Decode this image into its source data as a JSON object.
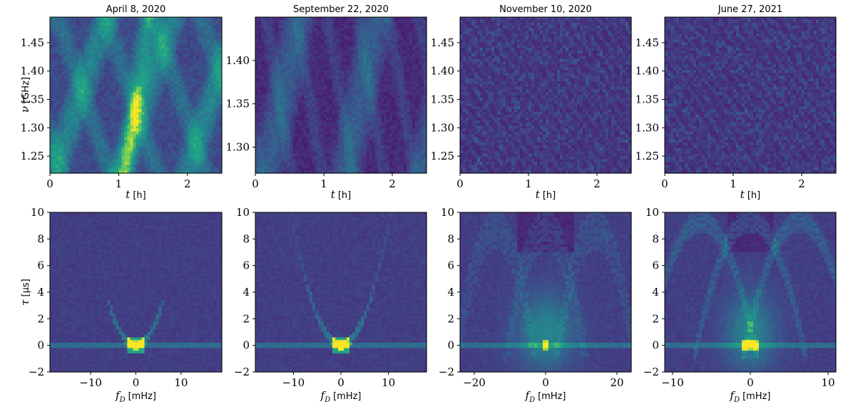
{
  "figure": {
    "top_row_xlabel": {
      "sym": "t",
      "unit": "[h]"
    },
    "top_row_ylabel": {
      "sym": "ν",
      "unit": "[GHz]"
    },
    "bottom_row_xlabel": {
      "sym": "f",
      "sub": "D",
      "unit": "[mHz]"
    },
    "bottom_row_ylabel": {
      "sym": "τ",
      "unit": "[μs]"
    }
  },
  "chart_data": [
    {
      "type": "heatmap",
      "kind": "dynamic-spectrum",
      "title": "April 8, 2020",
      "xlim": [
        0,
        2.5
      ],
      "ylim": [
        1.22,
        1.495
      ],
      "xticks": [
        0,
        1,
        2
      ],
      "xtick_labels": [
        "0",
        "1",
        "2"
      ],
      "yticks": [
        1.25,
        1.3,
        1.35,
        1.4,
        1.45
      ],
      "ytick_labels": [
        "1.25",
        "1.30",
        "1.35",
        "1.40",
        "1.45"
      ],
      "colormap": "viridis"
    },
    {
      "type": "heatmap",
      "kind": "dynamic-spectrum",
      "title": "September 22, 2020",
      "xlim": [
        0,
        2.5
      ],
      "ylim": [
        1.27,
        1.45
      ],
      "xticks": [
        0,
        1,
        2
      ],
      "xtick_labels": [
        "0",
        "1",
        "2"
      ],
      "yticks": [
        1.3,
        1.35,
        1.4
      ],
      "ytick_labels": [
        "1.30",
        "1.35",
        "1.40"
      ],
      "colormap": "viridis"
    },
    {
      "type": "heatmap",
      "kind": "dynamic-spectrum",
      "title": "November 10, 2020",
      "xlim": [
        0,
        2.5
      ],
      "ylim": [
        1.22,
        1.495
      ],
      "xticks": [
        0,
        1,
        2
      ],
      "xtick_labels": [
        "0",
        "1",
        "2"
      ],
      "yticks": [
        1.25,
        1.3,
        1.35,
        1.4,
        1.45
      ],
      "ytick_labels": [
        "1.25",
        "1.30",
        "1.35",
        "1.40",
        "1.45"
      ],
      "colormap": "viridis"
    },
    {
      "type": "heatmap",
      "kind": "dynamic-spectrum",
      "title": "June 27, 2021",
      "xlim": [
        0,
        2.5
      ],
      "ylim": [
        1.22,
        1.495
      ],
      "xticks": [
        0,
        1,
        2
      ],
      "xtick_labels": [
        "0",
        "1",
        "2"
      ],
      "yticks": [
        1.25,
        1.3,
        1.35,
        1.4,
        1.45
      ],
      "ytick_labels": [
        "1.25",
        "1.30",
        "1.35",
        "1.40",
        "1.45"
      ],
      "colormap": "viridis"
    },
    {
      "type": "heatmap",
      "kind": "secondary-spectrum",
      "xlim": [
        -19,
        19
      ],
      "ylim": [
        -2,
        10
      ],
      "xticks": [
        -10,
        0,
        10
      ],
      "xtick_labels": [
        "−10",
        "0",
        "10"
      ],
      "yticks": [
        -2,
        0,
        2,
        4,
        6,
        8,
        10
      ],
      "ytick_labels": [
        "−2",
        "0",
        "2",
        "4",
        "6",
        "8",
        "10"
      ],
      "arc_curvature": 0.09,
      "arc_extent_tau": 3.5,
      "colormap": "viridis"
    },
    {
      "type": "heatmap",
      "kind": "secondary-spectrum",
      "xlim": [
        -18,
        18
      ],
      "ylim": [
        -2,
        10
      ],
      "xticks": [
        -10,
        0,
        10
      ],
      "xtick_labels": [
        "−10",
        "0",
        "10"
      ],
      "yticks": [
        -2,
        0,
        2,
        4,
        6,
        8,
        10
      ],
      "ytick_labels": [
        "−2",
        "0",
        "2",
        "4",
        "6",
        "8",
        "10"
      ],
      "arc_curvature": 0.09,
      "arc_extent_tau": 10,
      "colormap": "viridis"
    },
    {
      "type": "heatmap",
      "kind": "secondary-spectrum",
      "xlim": [
        -24,
        24
      ],
      "ylim": [
        -2,
        10
      ],
      "xticks": [
        -20,
        0,
        20
      ],
      "xtick_labels": [
        "−20",
        "0",
        "20"
      ],
      "yticks": [
        -2,
        0,
        2,
        4,
        6,
        8,
        10
      ],
      "ytick_labels": [
        "−2",
        "0",
        "2",
        "4",
        "6",
        "8",
        "10"
      ],
      "arc_curvature": 0.05,
      "arc_extent_tau": 10,
      "arc_centers": [
        -14,
        14
      ],
      "colormap": "viridis"
    },
    {
      "type": "heatmap",
      "kind": "secondary-spectrum",
      "xlim": [
        -11,
        11
      ],
      "ylim": [
        -2,
        10
      ],
      "xticks": [
        -10,
        0,
        10
      ],
      "xtick_labels": [
        "−10",
        "0",
        "10"
      ],
      "yticks": [
        -2,
        0,
        2,
        4,
        6,
        8,
        10
      ],
      "ytick_labels": [
        "−2",
        "0",
        "2",
        "4",
        "6",
        "8",
        "10"
      ],
      "arc_curvature": 0.25,
      "arc_extent_tau": 10,
      "arc_centers": [
        -6.3,
        6.3
      ],
      "colormap": "viridis"
    }
  ]
}
